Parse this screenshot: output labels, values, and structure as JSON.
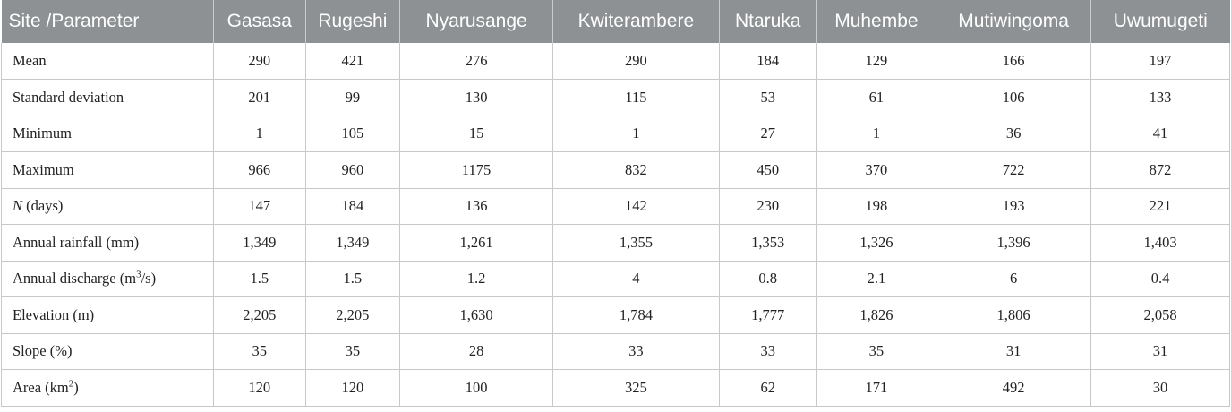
{
  "table": {
    "headers": [
      "Site /Parameter",
      "Gasasa",
      "Rugeshi",
      "Nyarusange",
      "Kwiterambere",
      "Ntaruka",
      "Muhembe",
      "Mutiwingoma",
      "Uwumugeti"
    ],
    "rows": [
      {
        "label": "Mean",
        "values": [
          "290",
          "421",
          "276",
          "290",
          "184",
          "129",
          "166",
          "197"
        ]
      },
      {
        "label": "Standard deviation",
        "values": [
          "201",
          "99",
          "130",
          "115",
          "53",
          "61",
          "106",
          "133"
        ]
      },
      {
        "label": "Minimum",
        "values": [
          "1",
          "105",
          "15",
          "1",
          "27",
          "1",
          "36",
          "41"
        ]
      },
      {
        "label": "Maximum",
        "values": [
          "966",
          "960",
          "1175",
          "832",
          "450",
          "370",
          "722",
          "872"
        ]
      },
      {
        "label_italic": "N",
        "label_rest": " (days)",
        "values": [
          "147",
          "184",
          "136",
          "142",
          "230",
          "198",
          "193",
          "221"
        ]
      },
      {
        "label": "Annual rainfall (mm)",
        "values": [
          "1,349",
          "1,349",
          "1,261",
          "1,355",
          "1,353",
          "1,326",
          "1,396",
          "1,403"
        ]
      },
      {
        "label_pre": "Annual discharge (m",
        "label_sup": "3",
        "label_post": "/s)",
        "values": [
          "1.5",
          "1.5",
          "1.2",
          "4",
          "0.8",
          "2.1",
          "6",
          "0.4"
        ]
      },
      {
        "label": "Elevation (m)",
        "values": [
          "2,205",
          "2,205",
          "1,630",
          "1,784",
          "1,777",
          "1,826",
          "1,806",
          "2,058"
        ]
      },
      {
        "label": "Slope (%)",
        "values": [
          "35",
          "35",
          "28",
          "33",
          "33",
          "35",
          "31",
          "31"
        ]
      },
      {
        "label_pre": "Area (km",
        "label_sup": "2",
        "label_post": ")",
        "values": [
          "120",
          "120",
          "100",
          "325",
          "62",
          "171",
          "492",
          "30"
        ]
      }
    ]
  }
}
